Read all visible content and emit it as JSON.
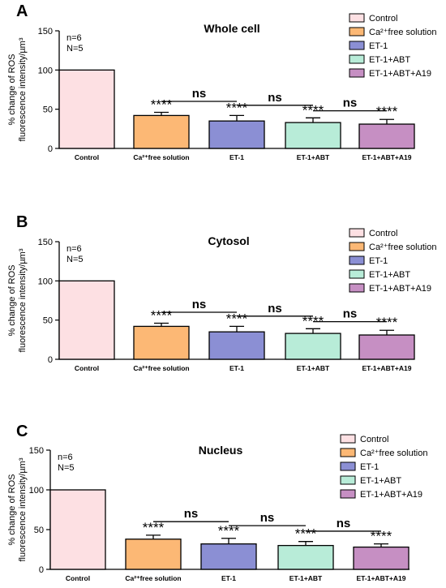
{
  "legend": [
    "Control",
    "Ca²⁺free solution",
    "ET-1",
    "ET-1+ABT",
    "ET-1+ABT+A19"
  ],
  "colors": [
    "#fde0e3",
    "#fcb875",
    "#8b8fd4",
    "#b8ecd8",
    "#c68fc3"
  ],
  "ylabel_line1": "% change of ROS",
  "ylabel_line2": "fluorescence intensity/µm³",
  "chart_data": [
    {
      "type": "bar",
      "panel": "A",
      "title": "Whole cell",
      "n_label": "n=6",
      "N_label": "N=5",
      "categories": [
        "Control",
        "Ca²⁺free solution",
        "ET-1",
        "ET-1+ABT",
        "ET-1+ABT+A19"
      ],
      "values": [
        100,
        42,
        35,
        33,
        31
      ],
      "errors": [
        0,
        4,
        7,
        6,
        6
      ],
      "yticks": [
        "0",
        "50",
        "100",
        "150"
      ],
      "ylim": [
        0,
        150
      ],
      "stars": [
        "",
        "****",
        "****",
        "****",
        "****"
      ],
      "ns": [
        "ns",
        "ns",
        "ns"
      ]
    },
    {
      "type": "bar",
      "panel": "B",
      "title": "Cytosol",
      "n_label": "n=6",
      "N_label": "N=5",
      "categories": [
        "Control",
        "Ca²⁺free solution",
        "ET-1",
        "ET-1+ABT",
        "ET-1+ABT+A19"
      ],
      "values": [
        100,
        42,
        35,
        33,
        31
      ],
      "errors": [
        0,
        4,
        7,
        6,
        6
      ],
      "yticks": [
        "0",
        "50",
        "100",
        "150"
      ],
      "ylim": [
        0,
        150
      ],
      "stars": [
        "",
        "****",
        "****",
        "****",
        "****"
      ],
      "ns": [
        "ns",
        "ns",
        "ns"
      ]
    },
    {
      "type": "bar",
      "panel": "C",
      "title": "Nucleus",
      "n_label": "n=6",
      "N_label": "N=5",
      "categories": [
        "Control",
        "Ca²⁺free solution",
        "ET-1",
        "ET-1+ABT",
        "ET-1+ABT+A19"
      ],
      "values": [
        100,
        38,
        32,
        30,
        28
      ],
      "errors": [
        0,
        5,
        7,
        5,
        4
      ],
      "yticks": [
        "0",
        "50",
        "100",
        "150"
      ],
      "ylim": [
        0,
        150
      ],
      "stars": [
        "",
        "****",
        "****",
        "****",
        "****"
      ],
      "ns": [
        "ns",
        "ns",
        "ns"
      ]
    }
  ]
}
